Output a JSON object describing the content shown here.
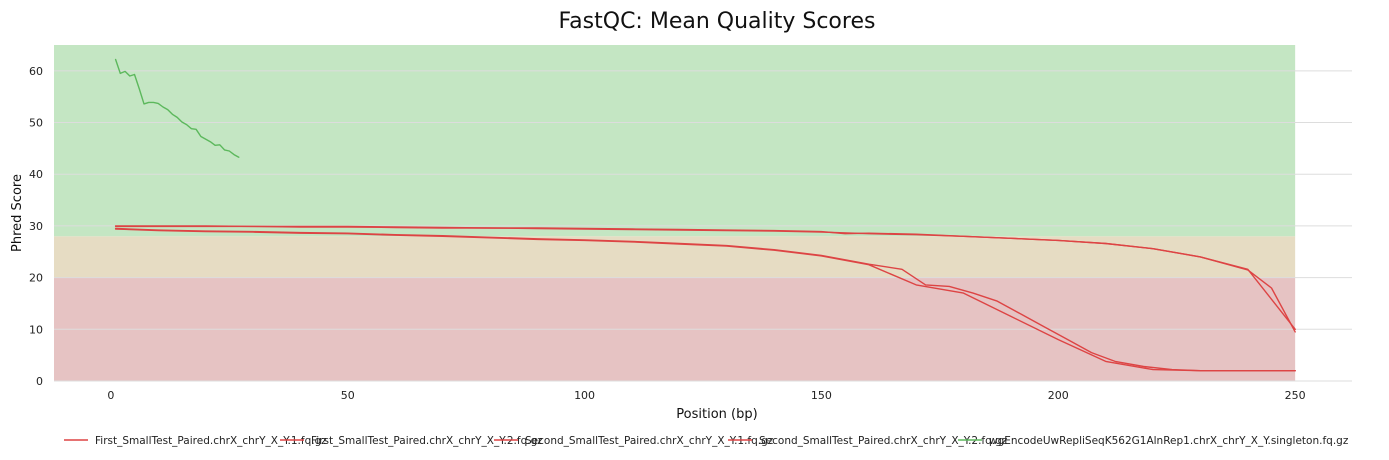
{
  "chart_data": {
    "type": "line",
    "title": "FastQC: Mean Quality Scores",
    "xlabel": "Position (bp)",
    "ylabel": "Phred Score",
    "xlim": [
      -12,
      262
    ],
    "ylim": [
      0,
      65
    ],
    "xticks": [
      0,
      50,
      100,
      150,
      200,
      250
    ],
    "yticks": [
      0,
      10,
      20,
      30,
      40,
      50,
      60
    ],
    "grid": "horizontal",
    "legend_position": "bottom",
    "bands": [
      {
        "from": 0,
        "to": 20,
        "color": "#e6c3c3"
      },
      {
        "from": 20,
        "to": 28,
        "color": "#e6dcc3"
      },
      {
        "from": 28,
        "to": 65,
        "color": "#c4e6c3"
      }
    ],
    "band_x_range": [
      -12,
      250
    ],
    "series": [
      {
        "name": "First_SmallTest_Paired.chrX_chrY_X_Y.1.fq.gz",
        "color": "#dd4444",
        "x": [
          1,
          10,
          20,
          30,
          40,
          50,
          60,
          70,
          80,
          90,
          100,
          110,
          120,
          130,
          140,
          150,
          155,
          160,
          170,
          180,
          190,
          200,
          210,
          220,
          230,
          240,
          245,
          250
        ],
        "y": [
          30.0,
          30.0,
          30.0,
          29.9,
          29.9,
          29.9,
          29.8,
          29.7,
          29.6,
          29.6,
          29.5,
          29.4,
          29.3,
          29.2,
          29.1,
          28.9,
          28.5,
          28.6,
          28.4,
          28.0,
          27.6,
          27.2,
          26.6,
          25.6,
          24.0,
          21.5,
          18.0,
          9.5
        ]
      },
      {
        "name": "First_SmallTest_Paired.chrX_chrY_X_Y.2.fq.gz",
        "color": "#dd4444",
        "x": [
          1,
          10,
          20,
          30,
          40,
          50,
          60,
          70,
          80,
          90,
          100,
          110,
          120,
          130,
          140,
          150,
          160,
          167,
          172,
          177,
          182,
          187,
          192,
          197,
          202,
          207,
          212,
          218,
          224,
          230,
          240,
          250
        ],
        "y": [
          29.5,
          29.2,
          29.0,
          28.9,
          28.7,
          28.6,
          28.3,
          28.1,
          27.8,
          27.5,
          27.3,
          27.0,
          26.6,
          26.2,
          25.4,
          24.3,
          22.6,
          21.6,
          18.6,
          18.3,
          17.0,
          15.5,
          13.0,
          10.5,
          8.0,
          5.5,
          3.8,
          2.8,
          2.2,
          2.0,
          2.0,
          2.0
        ]
      },
      {
        "name": "Second_SmallTest_Paired.chrX_chrY_X_Y.1.fq.gz",
        "color": "#dd4444",
        "x": [
          1,
          10,
          20,
          30,
          40,
          50,
          60,
          70,
          80,
          90,
          100,
          110,
          120,
          130,
          140,
          150,
          160,
          170,
          180,
          190,
          200,
          210,
          220,
          230,
          240,
          250
        ],
        "y": [
          29.9,
          29.9,
          29.9,
          29.9,
          29.8,
          29.8,
          29.7,
          29.6,
          29.6,
          29.5,
          29.4,
          29.3,
          29.2,
          29.1,
          29.0,
          28.8,
          28.5,
          28.3,
          28.0,
          27.6,
          27.2,
          26.6,
          25.6,
          24.0,
          21.6,
          10.0
        ]
      },
      {
        "name": "Second_SmallTest_Paired.chrX_chrY_X_Y.2.fq.gz",
        "color": "#dd4444",
        "x": [
          1,
          10,
          20,
          30,
          40,
          50,
          60,
          70,
          80,
          90,
          100,
          110,
          120,
          130,
          140,
          150,
          160,
          170,
          180,
          190,
          200,
          210,
          220,
          230,
          240,
          250
        ],
        "y": [
          29.4,
          29.1,
          28.9,
          28.8,
          28.6,
          28.5,
          28.2,
          28.0,
          27.7,
          27.4,
          27.2,
          26.9,
          26.5,
          26.1,
          25.3,
          24.2,
          22.5,
          18.6,
          17.0,
          12.5,
          8.0,
          3.8,
          2.2,
          2.0,
          2.0,
          2.0
        ]
      },
      {
        "name": "wgEncodeUwRepliSeqK562G1AlnRep1.chrX_chrY_X_Y.singleton.fq.gz",
        "color": "#5cb85c",
        "x": [
          1,
          2,
          3,
          4,
          5,
          6,
          7,
          8,
          9,
          10,
          11,
          12,
          13,
          14,
          15,
          16,
          17,
          18,
          19,
          20,
          21,
          22,
          23,
          24,
          25,
          26,
          27
        ],
        "y": [
          62.2,
          59.5,
          59.9,
          59.0,
          59.3,
          56.5,
          53.6,
          53.9,
          53.9,
          53.7,
          53.0,
          52.5,
          51.6,
          51.0,
          50.1,
          49.6,
          48.8,
          48.7,
          47.3,
          46.8,
          46.3,
          45.6,
          45.7,
          44.7,
          44.5,
          43.8,
          43.3
        ]
      }
    ]
  }
}
